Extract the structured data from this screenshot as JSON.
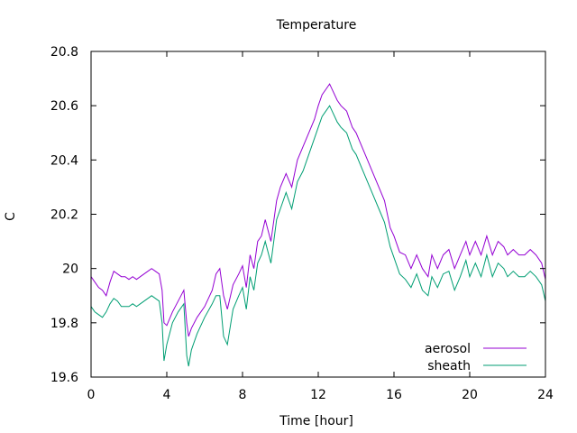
{
  "chart_data": {
    "type": "line",
    "title": "Temperature",
    "xlabel": "Time [hour]",
    "ylabel": "C",
    "xlim": [
      0,
      24
    ],
    "ylim": [
      19.6,
      20.8
    ],
    "xticks": [
      0,
      4,
      8,
      12,
      16,
      20,
      24
    ],
    "xtick_labels": [
      "0",
      "4",
      "8",
      "12",
      "16",
      "20",
      "24"
    ],
    "yticks": [
      19.6,
      19.8,
      20.0,
      20.2,
      20.4,
      20.6,
      20.8
    ],
    "ytick_labels": [
      "19.6",
      "19.8",
      "20",
      "20.2",
      "20.4",
      "20.6",
      "20.8"
    ],
    "grid": false,
    "legend_position": "bottom-right",
    "series": [
      {
        "name": "aerosol",
        "color": "#9400d3",
        "x": [
          0.0,
          0.2,
          0.4,
          0.6,
          0.8,
          1.0,
          1.2,
          1.4,
          1.6,
          1.8,
          2.0,
          2.2,
          2.4,
          2.6,
          2.8,
          3.0,
          3.2,
          3.4,
          3.6,
          3.75,
          3.85,
          4.0,
          4.3,
          4.6,
          4.9,
          5.05,
          5.15,
          5.3,
          5.6,
          6.0,
          6.4,
          6.6,
          6.8,
          7.0,
          7.2,
          7.5,
          7.8,
          8.0,
          8.2,
          8.4,
          8.6,
          8.8,
          9.0,
          9.2,
          9.5,
          9.8,
          10.0,
          10.3,
          10.6,
          10.9,
          11.2,
          11.5,
          11.8,
          12.0,
          12.2,
          12.4,
          12.6,
          12.8,
          13.0,
          13.2,
          13.5,
          13.8,
          14.0,
          14.3,
          14.6,
          14.9,
          15.2,
          15.5,
          15.8,
          16.0,
          16.3,
          16.6,
          16.9,
          17.2,
          17.5,
          17.8,
          18.0,
          18.3,
          18.6,
          18.9,
          19.2,
          19.5,
          19.8,
          20.0,
          20.3,
          20.6,
          20.9,
          21.2,
          21.5,
          21.8,
          22.0,
          22.3,
          22.6,
          22.9,
          23.2,
          23.5,
          23.8,
          24.0
        ],
        "values": [
          19.97,
          19.95,
          19.93,
          19.92,
          19.9,
          19.95,
          19.99,
          19.98,
          19.97,
          19.97,
          19.96,
          19.97,
          19.96,
          19.97,
          19.98,
          19.99,
          20.0,
          19.99,
          19.98,
          19.92,
          19.8,
          19.79,
          19.84,
          19.88,
          19.92,
          19.8,
          19.75,
          19.78,
          19.82,
          19.86,
          19.92,
          19.98,
          20.0,
          19.9,
          19.85,
          19.94,
          19.98,
          20.01,
          19.93,
          20.05,
          20.0,
          20.1,
          20.12,
          20.18,
          20.1,
          20.25,
          20.3,
          20.35,
          20.3,
          20.4,
          20.45,
          20.5,
          20.55,
          20.6,
          20.64,
          20.66,
          20.68,
          20.65,
          20.62,
          20.6,
          20.58,
          20.52,
          20.5,
          20.45,
          20.4,
          20.35,
          20.3,
          20.25,
          20.15,
          20.12,
          20.06,
          20.05,
          20.0,
          20.05,
          20.0,
          19.97,
          20.05,
          20.0,
          20.05,
          20.07,
          20.0,
          20.05,
          20.1,
          20.05,
          20.1,
          20.05,
          20.12,
          20.05,
          20.1,
          20.08,
          20.05,
          20.07,
          20.05,
          20.05,
          20.07,
          20.05,
          20.02,
          19.96
        ]
      },
      {
        "name": "sheath",
        "color": "#009e73",
        "x": [
          0.0,
          0.2,
          0.4,
          0.6,
          0.8,
          1.0,
          1.2,
          1.4,
          1.6,
          1.8,
          2.0,
          2.2,
          2.4,
          2.6,
          2.8,
          3.0,
          3.2,
          3.4,
          3.6,
          3.75,
          3.85,
          4.0,
          4.3,
          4.6,
          4.9,
          5.05,
          5.15,
          5.3,
          5.6,
          6.0,
          6.4,
          6.6,
          6.8,
          7.0,
          7.2,
          7.5,
          7.8,
          8.0,
          8.2,
          8.4,
          8.6,
          8.8,
          9.0,
          9.2,
          9.5,
          9.8,
          10.0,
          10.3,
          10.6,
          10.9,
          11.2,
          11.5,
          11.8,
          12.0,
          12.2,
          12.4,
          12.6,
          12.8,
          13.0,
          13.2,
          13.5,
          13.8,
          14.0,
          14.3,
          14.6,
          14.9,
          15.2,
          15.5,
          15.8,
          16.0,
          16.3,
          16.6,
          16.9,
          17.2,
          17.5,
          17.8,
          18.0,
          18.3,
          18.6,
          18.9,
          19.2,
          19.5,
          19.8,
          20.0,
          20.3,
          20.6,
          20.9,
          21.2,
          21.5,
          21.8,
          22.0,
          22.3,
          22.6,
          22.9,
          23.2,
          23.5,
          23.8,
          24.0
        ],
        "values": [
          19.86,
          19.84,
          19.83,
          19.82,
          19.84,
          19.87,
          19.89,
          19.88,
          19.86,
          19.86,
          19.86,
          19.87,
          19.86,
          19.87,
          19.88,
          19.89,
          19.9,
          19.89,
          19.88,
          19.8,
          19.66,
          19.72,
          19.8,
          19.84,
          19.87,
          19.68,
          19.64,
          19.7,
          19.76,
          19.82,
          19.87,
          19.9,
          19.9,
          19.75,
          19.72,
          19.85,
          19.9,
          19.93,
          19.85,
          19.97,
          19.92,
          20.02,
          20.05,
          20.1,
          20.02,
          20.18,
          20.22,
          20.28,
          20.22,
          20.32,
          20.36,
          20.42,
          20.48,
          20.52,
          20.56,
          20.58,
          20.6,
          20.57,
          20.54,
          20.52,
          20.5,
          20.44,
          20.42,
          20.37,
          20.32,
          20.27,
          20.22,
          20.17,
          20.08,
          20.04,
          19.98,
          19.96,
          19.93,
          19.98,
          19.92,
          19.9,
          19.97,
          19.93,
          19.98,
          19.99,
          19.92,
          19.97,
          20.03,
          19.97,
          20.02,
          19.97,
          20.05,
          19.97,
          20.02,
          20.0,
          19.97,
          19.99,
          19.97,
          19.97,
          19.99,
          19.97,
          19.94,
          19.88
        ]
      }
    ]
  }
}
